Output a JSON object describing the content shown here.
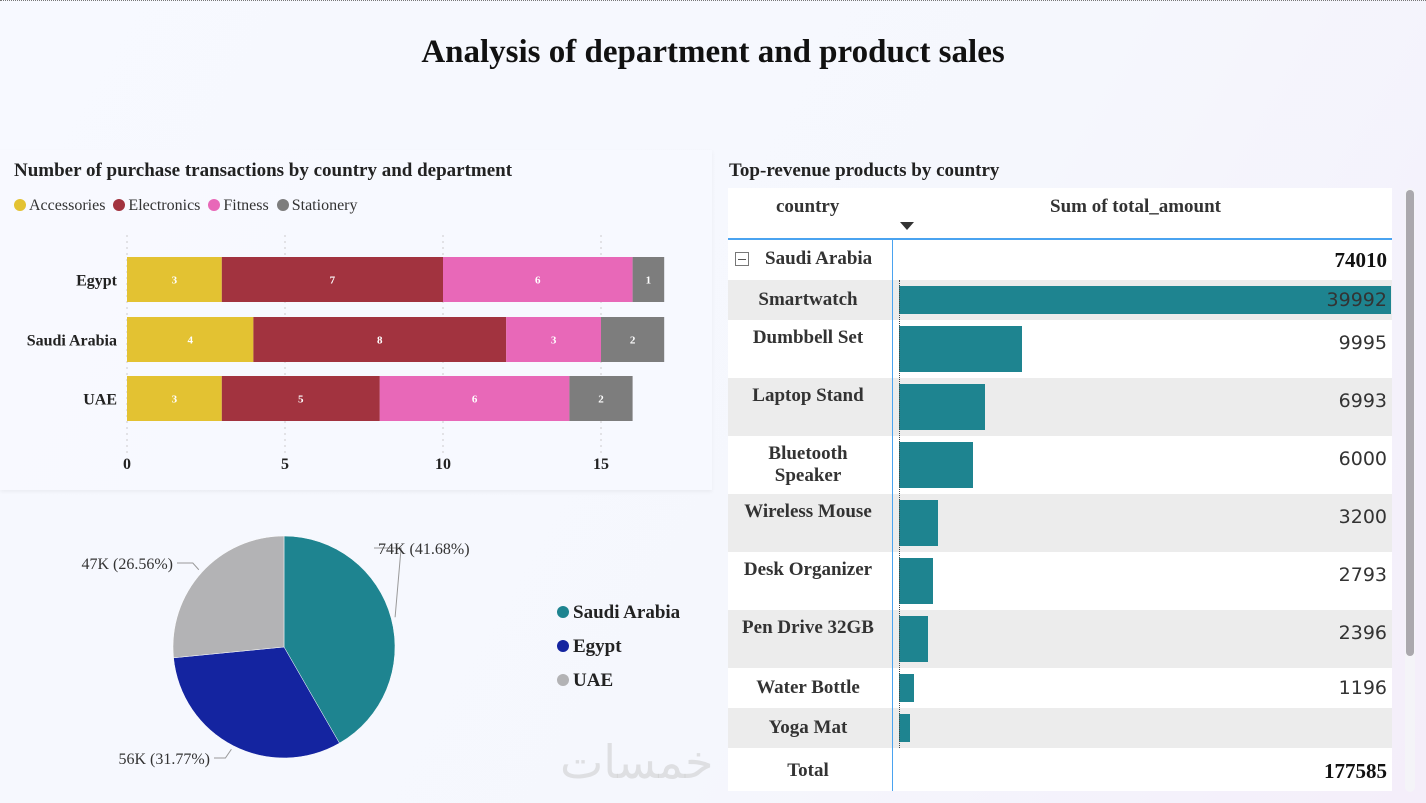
{
  "title": "Analysis of department and product sales",
  "bar_chart": {
    "chart_data": {
      "type": "bar",
      "orientation": "horizontal",
      "stacked": true,
      "title": "Number of purchase transactions by country and department",
      "categories": [
        "Egypt",
        "Saudi Arabia",
        "UAE"
      ],
      "series": [
        {
          "name": "Accessories",
          "color": "#e3c232",
          "values": [
            3,
            4,
            3
          ]
        },
        {
          "name": "Electronics",
          "color": "#a2333f",
          "values": [
            7,
            8,
            5
          ]
        },
        {
          "name": "Fitness",
          "color": "#e868b8",
          "values": [
            6,
            3,
            6
          ]
        },
        {
          "name": "Stationery",
          "color": "#7d7d7d",
          "values": [
            1,
            2,
            2
          ]
        }
      ],
      "xticks": [
        "0",
        "5",
        "10",
        "15"
      ],
      "xlim": [
        0,
        17
      ],
      "grid": true,
      "legend": "top-left"
    }
  },
  "pie_chart": {
    "chart_data": {
      "type": "pie",
      "slices": [
        {
          "name": "Saudi Arabia",
          "value": 74010,
          "label": "74K (41.68%)",
          "color": "#1e8490"
        },
        {
          "name": "Egypt",
          "value": 56420,
          "label": "56K (31.77%)",
          "color": "#1424a0"
        },
        {
          "name": "UAE",
          "value": 47155,
          "label": "47K (26.56%)",
          "color": "#b3b3b5"
        }
      ],
      "legend": "right"
    }
  },
  "table": {
    "title": "Top-revenue products by country",
    "col_country": "country",
    "col_amount": "Sum of total_amount",
    "group": {
      "label": "Saudi Arabia",
      "value": "74010"
    },
    "bar_max": 39992,
    "rows": [
      {
        "label": "Smartwatch",
        "value": "39992",
        "n": 39992
      },
      {
        "label": "Dumbbell Set",
        "value": "9995",
        "n": 9995
      },
      {
        "label": "Laptop Stand",
        "value": "6993",
        "n": 6993
      },
      {
        "label": "Bluetooth Speaker",
        "value": "6000",
        "n": 6000
      },
      {
        "label": "Wireless Mouse",
        "value": "3200",
        "n": 3200
      },
      {
        "label": "Desk Organizer",
        "value": "2793",
        "n": 2793
      },
      {
        "label": "Pen Drive 32GB",
        "value": "2396",
        "n": 2396
      },
      {
        "label": "Water Bottle",
        "value": "1196",
        "n": 1196
      },
      {
        "label": "Yoga Mat",
        "value": "",
        "n": 900
      }
    ],
    "total_label": "Total",
    "total_value": "177585",
    "bar_color": "#1e8490"
  },
  "watermark": "خمسات"
}
